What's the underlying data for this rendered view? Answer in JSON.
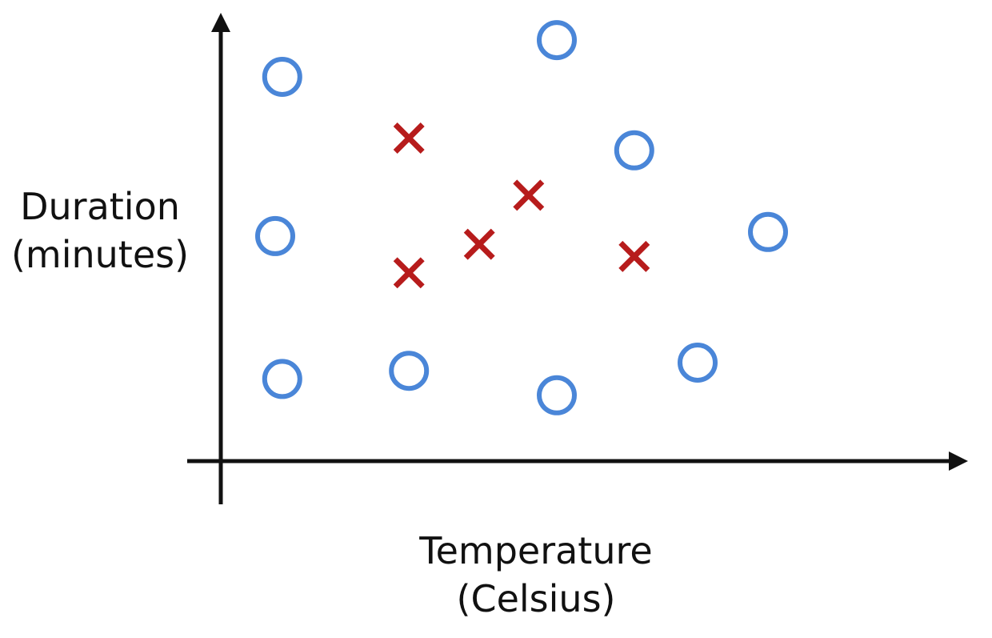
{
  "chart_data": {
    "type": "scatter",
    "xlabel": [
      "Temperature",
      "(Celsius)"
    ],
    "ylabel": [
      "Duration",
      "(minutes)"
    ],
    "xlim": [
      0,
      10
    ],
    "ylim": [
      0,
      10
    ],
    "grid": false,
    "series": [
      {
        "marker": "circle",
        "color": "#4a86d8",
        "points": [
          {
            "x": 0.6,
            "y": 9.0
          },
          {
            "x": 4.5,
            "y": 9.9
          },
          {
            "x": 5.6,
            "y": 7.2
          },
          {
            "x": 0.5,
            "y": 5.1
          },
          {
            "x": 7.5,
            "y": 5.2
          },
          {
            "x": 0.6,
            "y": 1.6
          },
          {
            "x": 2.4,
            "y": 1.8
          },
          {
            "x": 4.5,
            "y": 1.2
          },
          {
            "x": 6.5,
            "y": 2.0
          }
        ]
      },
      {
        "marker": "cross",
        "color": "#b71c1c",
        "points": [
          {
            "x": 2.4,
            "y": 7.5
          },
          {
            "x": 3.4,
            "y": 4.9
          },
          {
            "x": 4.1,
            "y": 6.1
          },
          {
            "x": 2.4,
            "y": 4.2
          },
          {
            "x": 5.6,
            "y": 4.6
          }
        ]
      }
    ]
  }
}
